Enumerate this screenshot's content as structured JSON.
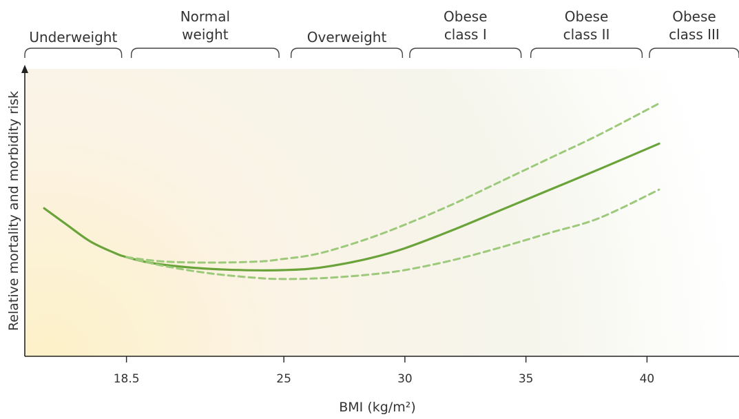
{
  "chart_data": {
    "type": "line",
    "xlabel": "BMI (kg/m²)",
    "ylabel": "Relative mortality and morbidity risk",
    "xlim": [
      14.3,
      43.8
    ],
    "ylim": [
      0,
      100
    ],
    "x_ticks": [
      {
        "value": 18.5,
        "label": "18.5"
      },
      {
        "value": 25,
        "label": "25"
      },
      {
        "value": 30,
        "label": "30"
      },
      {
        "value": 35,
        "label": "35"
      },
      {
        "value": 40,
        "label": "40"
      }
    ],
    "categories": [
      {
        "lines": [
          "Underweight"
        ],
        "from": 14.3,
        "to": 18.3
      },
      {
        "lines": [
          "Normal",
          "weight"
        ],
        "from": 18.7,
        "to": 24.8
      },
      {
        "lines": [
          "Overweight"
        ],
        "from": 25.3,
        "to": 29.9
      },
      {
        "lines": [
          "Obese",
          "class I"
        ],
        "from": 30.2,
        "to": 34.8
      },
      {
        "lines": [
          "Obese",
          "class II"
        ],
        "from": 35.2,
        "to": 39.8
      },
      {
        "lines": [
          "Obese",
          "class III"
        ],
        "from": 40.1,
        "to": 43.8
      }
    ],
    "series": [
      {
        "style": "solid",
        "x": [
          15.1,
          16.0,
          17.0,
          18.0,
          18.5,
          19.5,
          21.0,
          22.5,
          24.0,
          25.0,
          26.0,
          27.0,
          28.5,
          30.0,
          32.0,
          34.0,
          36.0,
          38.0,
          40.5
        ],
        "y": [
          51.5,
          46.0,
          40.0,
          36.0,
          34.5,
          32.5,
          31.0,
          30.2,
          29.9,
          30.0,
          30.4,
          31.5,
          34.0,
          37.6,
          44.0,
          51.0,
          58.0,
          65.0,
          74.0
        ]
      },
      {
        "style": "dashed",
        "x": [
          18.5,
          20.0,
          22.0,
          24.0,
          25.0,
          26.0,
          27.0,
          28.5,
          30.0,
          32.0,
          34.0,
          36.0,
          38.0,
          40.5
        ],
        "y": [
          34.5,
          33.0,
          32.6,
          33.0,
          33.9,
          35.0,
          37.0,
          41.0,
          45.8,
          53.0,
          61.0,
          69.0,
          77.0,
          88.0
        ]
      },
      {
        "style": "dashed",
        "x": [
          18.5,
          20.0,
          22.0,
          24.0,
          25.0,
          26.0,
          27.0,
          28.5,
          30.0,
          32.0,
          34.0,
          36.0,
          38.0,
          40.5
        ],
        "y": [
          34.5,
          31.5,
          28.8,
          27.2,
          26.9,
          27.0,
          27.4,
          28.4,
          30.0,
          33.5,
          38.0,
          43.0,
          48.0,
          58.0
        ]
      }
    ],
    "colors": {
      "line": "#6aa33a",
      "dashed": "#9cc97a",
      "axis": "#222222",
      "text": "#333333",
      "bg_warm": "#fdf1c8"
    },
    "legend": "none",
    "grid": false
  }
}
